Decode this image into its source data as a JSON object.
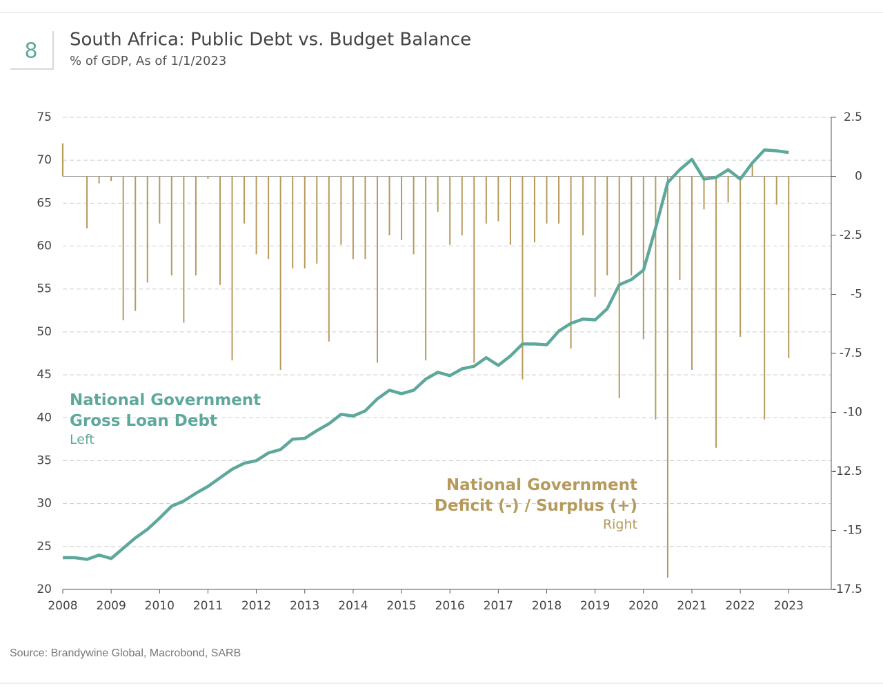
{
  "header": {
    "number": "8",
    "title": "South Africa: Public Debt vs. Budget Balance",
    "subtitle": "% of GDP, As of 1/1/2023"
  },
  "source": "Source: Brandywine Global, Macrobond, SARB",
  "chart_data": {
    "type": "line-bar",
    "xlim": [
      2008,
      2023.88
    ],
    "xticks": [
      2008,
      2009,
      2010,
      2011,
      2012,
      2013,
      2014,
      2015,
      2016,
      2017,
      2018,
      2019,
      2020,
      2021,
      2022,
      2023
    ],
    "ylim": [
      20,
      75
    ],
    "yticks": [
      20,
      25,
      30,
      35,
      40,
      45,
      50,
      55,
      60,
      65,
      70,
      75
    ],
    "y2lim": [
      -17.5,
      2.5
    ],
    "y2ticks": [
      -17.5,
      -15,
      -12.5,
      -10,
      -7.5,
      -5,
      -2.5,
      0,
      2.5
    ],
    "grid": true,
    "series": [
      {
        "name": "National Government Gross Loan Debt",
        "side_label": "Left",
        "type": "line",
        "color": "#5ea89b",
        "x": [
          2008,
          2008.25,
          2008.5,
          2008.75,
          2009,
          2009.25,
          2009.5,
          2009.75,
          2010,
          2010.25,
          2010.5,
          2010.75,
          2011,
          2011.25,
          2011.5,
          2011.75,
          2012,
          2012.25,
          2012.5,
          2012.75,
          2013,
          2013.25,
          2013.5,
          2013.75,
          2014,
          2014.25,
          2014.5,
          2014.75,
          2015,
          2015.25,
          2015.5,
          2015.75,
          2016,
          2016.25,
          2016.5,
          2016.75,
          2017,
          2017.25,
          2017.5,
          2017.75,
          2018,
          2018.25,
          2018.5,
          2018.75,
          2019,
          2019.25,
          2019.5,
          2019.75,
          2020,
          2020.25,
          2020.5,
          2020.75,
          2021,
          2021.25,
          2021.5,
          2021.75,
          2022,
          2022.25,
          2022.5,
          2022.75,
          2023
        ],
        "values": [
          23.7,
          23.7,
          23.5,
          24.0,
          23.6,
          24.8,
          26.0,
          27.0,
          28.3,
          29.7,
          30.3,
          31.2,
          32.0,
          33.0,
          34.0,
          34.7,
          35.0,
          35.9,
          36.3,
          37.5,
          37.6,
          38.5,
          39.3,
          40.4,
          40.2,
          40.8,
          42.2,
          43.2,
          42.8,
          43.2,
          44.5,
          45.3,
          44.9,
          45.7,
          46.0,
          47.0,
          46.1,
          47.2,
          48.6,
          48.6,
          48.5,
          50.1,
          51.0,
          51.5,
          51.4,
          52.7,
          55.5,
          56.1,
          57.2,
          62.1,
          67.4,
          68.9,
          70.1,
          67.8,
          68.0,
          68.9,
          67.8,
          69.7,
          71.2,
          71.1,
          70.9
        ]
      },
      {
        "name": "National Government Deficit (-) / Surplus (+)",
        "side_label": "Right",
        "type": "bar",
        "axis": "y2",
        "color": "#b59a5c",
        "x": [
          2008,
          2008.5,
          2008.75,
          2009,
          2009.25,
          2009.5,
          2009.75,
          2010,
          2010.25,
          2010.5,
          2010.75,
          2011,
          2011.25,
          2011.5,
          2011.75,
          2012,
          2012.25,
          2012.5,
          2012.75,
          2013,
          2013.25,
          2013.5,
          2013.75,
          2014,
          2014.25,
          2014.5,
          2014.75,
          2015,
          2015.25,
          2015.5,
          2015.75,
          2016,
          2016.25,
          2016.5,
          2016.75,
          2017,
          2017.25,
          2017.5,
          2017.75,
          2018,
          2018.25,
          2018.5,
          2018.75,
          2019,
          2019.25,
          2019.5,
          2019.75,
          2020,
          2020.25,
          2020.5,
          2020.75,
          2021,
          2021.25,
          2021.5,
          2021.75,
          2022,
          2022.25,
          2022.5,
          2022.75,
          2023
        ],
        "values": [
          1.4,
          -2.2,
          -0.3,
          -0.2,
          -6.1,
          -5.7,
          -4.5,
          -2.0,
          -4.2,
          -6.2,
          -4.2,
          -0.1,
          -4.6,
          -7.8,
          -2.0,
          -3.3,
          -3.5,
          -8.2,
          -3.9,
          -3.9,
          -3.7,
          -7.0,
          -2.9,
          -3.5,
          -3.5,
          -7.9,
          -2.5,
          -2.7,
          -3.3,
          -7.8,
          -1.5,
          -2.9,
          -2.5,
          -7.9,
          -2.0,
          -1.9,
          -2.9,
          -8.6,
          -2.8,
          -2.0,
          -2.0,
          -7.3,
          -2.5,
          -5.1,
          -4.2,
          -9.4,
          -4.2,
          -6.9,
          -10.3,
          -17.0,
          -4.4,
          -8.2,
          -1.4,
          -11.5,
          -1.1,
          -6.8,
          0.5,
          -10.3,
          -1.2,
          -7.7
        ]
      }
    ]
  }
}
